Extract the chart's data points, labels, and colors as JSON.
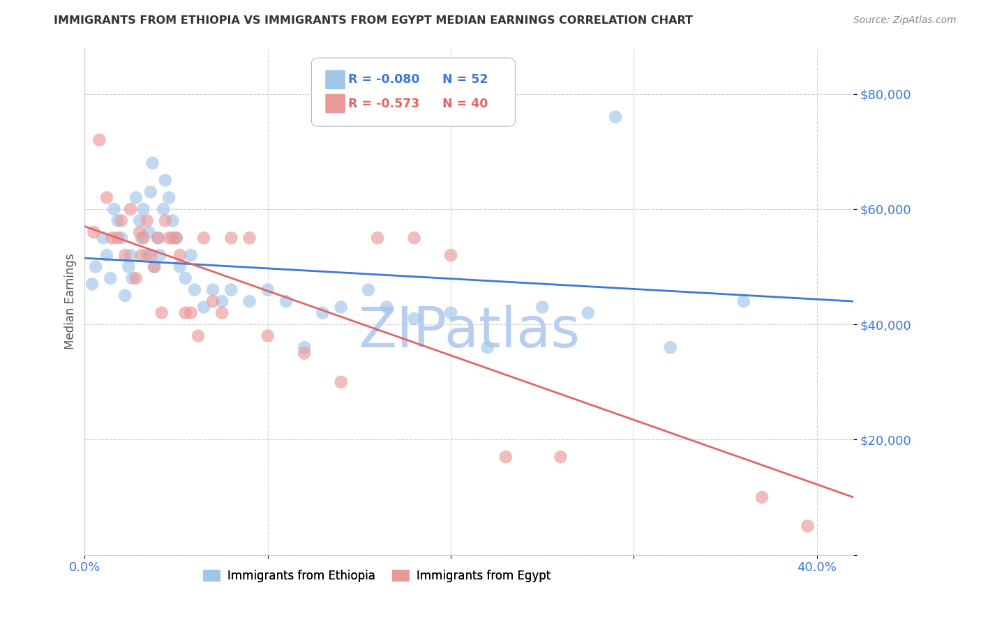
{
  "title": "IMMIGRANTS FROM ETHIOPIA VS IMMIGRANTS FROM EGYPT MEDIAN EARNINGS CORRELATION CHART",
  "source": "Source: ZipAtlas.com",
  "ylabel": "Median Earnings",
  "xlim": [
    0.0,
    0.42
  ],
  "ylim": [
    0,
    88000
  ],
  "yticks": [
    0,
    20000,
    40000,
    60000,
    80000
  ],
  "ytick_labels": [
    "",
    "$20,000",
    "$40,000",
    "$60,000",
    "$80,000"
  ],
  "xticks": [
    0.0,
    0.1,
    0.2,
    0.3,
    0.4
  ],
  "xtick_labels": [
    "0.0%",
    "",
    "",
    "",
    "40.0%"
  ],
  "legend_ethiopia_R": "R = -0.080",
  "legend_ethiopia_N": "N = 52",
  "legend_egypt_R": "R = -0.573",
  "legend_egypt_N": "N = 40",
  "color_ethiopia": "#9fc5e8",
  "color_egypt": "#ea9999",
  "color_trend_ethiopia": "#3c78d8",
  "color_trend_egypt": "#e06666",
  "color_axis_labels": "#3c78d8",
  "color_title": "#333333",
  "watermark_text": "ZIPatlas",
  "watermark_color": "#b8cef0",
  "background_color": "#ffffff",
  "grid_color": "#cccccc",
  "ethiopia_x": [
    0.004,
    0.006,
    0.01,
    0.012,
    0.014,
    0.016,
    0.018,
    0.02,
    0.022,
    0.024,
    0.025,
    0.026,
    0.028,
    0.03,
    0.031,
    0.032,
    0.034,
    0.035,
    0.036,
    0.037,
    0.038,
    0.04,
    0.041,
    0.043,
    0.044,
    0.046,
    0.048,
    0.05,
    0.052,
    0.055,
    0.058,
    0.06,
    0.065,
    0.07,
    0.075,
    0.08,
    0.09,
    0.1,
    0.11,
    0.12,
    0.13,
    0.14,
    0.155,
    0.165,
    0.18,
    0.2,
    0.22,
    0.25,
    0.275,
    0.29,
    0.32,
    0.36
  ],
  "ethiopia_y": [
    47000,
    50000,
    55000,
    52000,
    48000,
    60000,
    58000,
    55000,
    45000,
    50000,
    52000,
    48000,
    62000,
    58000,
    55000,
    60000,
    52000,
    56000,
    63000,
    68000,
    50000,
    55000,
    52000,
    60000,
    65000,
    62000,
    58000,
    55000,
    50000,
    48000,
    52000,
    46000,
    43000,
    46000,
    44000,
    46000,
    44000,
    46000,
    44000,
    36000,
    42000,
    43000,
    46000,
    43000,
    41000,
    42000,
    36000,
    43000,
    42000,
    76000,
    36000,
    44000
  ],
  "egypt_x": [
    0.005,
    0.008,
    0.012,
    0.015,
    0.018,
    0.02,
    0.022,
    0.025,
    0.028,
    0.03,
    0.031,
    0.032,
    0.034,
    0.036,
    0.038,
    0.04,
    0.042,
    0.044,
    0.046,
    0.048,
    0.05,
    0.052,
    0.055,
    0.058,
    0.062,
    0.065,
    0.07,
    0.075,
    0.08,
    0.09,
    0.1,
    0.12,
    0.14,
    0.16,
    0.18,
    0.2,
    0.23,
    0.26,
    0.37,
    0.395
  ],
  "egypt_y": [
    56000,
    72000,
    62000,
    55000,
    55000,
    58000,
    52000,
    60000,
    48000,
    56000,
    52000,
    55000,
    58000,
    52000,
    50000,
    55000,
    42000,
    58000,
    55000,
    55000,
    55000,
    52000,
    42000,
    42000,
    38000,
    55000,
    44000,
    42000,
    55000,
    55000,
    38000,
    35000,
    30000,
    55000,
    55000,
    52000,
    17000,
    17000,
    10000,
    5000
  ],
  "trend_ethiopia_x0": 0.0,
  "trend_ethiopia_x1": 0.42,
  "trend_ethiopia_y0": 51500,
  "trend_ethiopia_y1": 44000,
  "trend_egypt_x0": 0.0,
  "trend_egypt_x1": 0.42,
  "trend_egypt_y0": 57000,
  "trend_egypt_y1": 10000
}
